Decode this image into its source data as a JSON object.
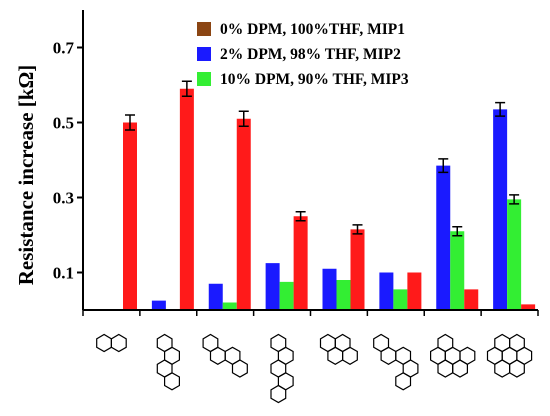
{
  "chart_data": {
    "type": "bar",
    "ylabel": "Resistance increase [kΩ]",
    "ylim": [
      0,
      0.8
    ],
    "yticks": [
      "0.1",
      "0.3",
      "0.5",
      "0.7"
    ],
    "ytick_values": [
      0.1,
      0.3,
      0.5,
      0.7
    ],
    "grid": false,
    "legend_position": "top-right",
    "categories": [
      "naphthalene",
      "tetracene",
      "chrysene",
      "pentacene",
      "triphenylene",
      "picene",
      "benzo[ghi]perylene",
      "coronene"
    ],
    "series": [
      {
        "name": "0%  DPM, 100%THF, MIP1",
        "color": "#ff1a1a",
        "values": [
          0.5,
          0.59,
          0.51,
          0.25,
          0.215,
          0.1,
          0.055,
          0.015
        ],
        "errors": [
          0.02,
          0.02,
          0.02,
          0.012,
          0.012,
          0,
          0,
          0
        ]
      },
      {
        "name": "2%  DPM, 98% THF, MIP2",
        "color": "#1a1aff",
        "values": [
          0,
          0.025,
          0.07,
          0.125,
          0.11,
          0.1,
          0.385,
          0.535
        ],
        "errors": [
          0,
          0,
          0,
          0,
          0,
          0,
          0.018,
          0.018
        ]
      },
      {
        "name": "10% DPM, 90% THF, MIP3",
        "color": "#33ee33",
        "values": [
          0,
          0,
          0.02,
          0.075,
          0.08,
          0.055,
          0.21,
          0.295
        ],
        "errors": [
          0,
          0,
          0,
          0,
          0,
          0,
          0.012,
          0.012
        ]
      }
    ],
    "legend_swatch_colors": [
      "#8b4513",
      "#1a1aff",
      "#33ee33"
    ]
  }
}
